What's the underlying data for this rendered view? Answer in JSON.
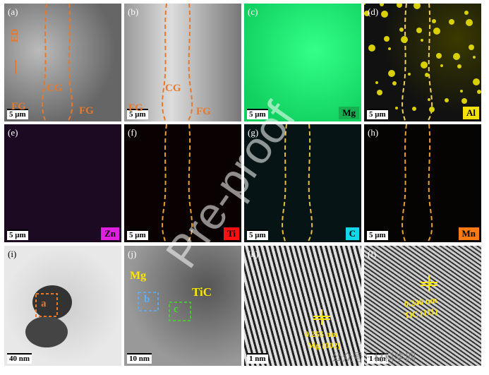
{
  "panels": [
    {
      "label": "(a)",
      "scale": "5 μm",
      "notes": [
        "ED",
        "FG",
        "CG",
        "FG"
      ]
    },
    {
      "label": "(b)",
      "scale": "5 μm",
      "notes": [
        "FG",
        "CG",
        "FG"
      ]
    },
    {
      "label": "(c)",
      "scale": "5 μm",
      "tag": "Mg"
    },
    {
      "label": "(d)",
      "scale": "5 μm",
      "tag": "Al"
    },
    {
      "label": "(e)",
      "scale": "5 μm",
      "tag": "Zn"
    },
    {
      "label": "(f)",
      "scale": "5 μm",
      "tag": "Ti"
    },
    {
      "label": "(g)",
      "scale": "5 μm",
      "tag": "C"
    },
    {
      "label": "(h)",
      "scale": "5 μm",
      "tag": "Mn"
    },
    {
      "label": "(i)",
      "scale": "40 nm",
      "notes": [
        "a"
      ]
    },
    {
      "label": "(j)",
      "scale": "10 nm",
      "notes": [
        "Mg",
        "TiC",
        "b",
        "c"
      ]
    },
    {
      "label": "(k)",
      "scale": "1 nm",
      "notes": [
        "0.255 nm",
        "Mg (002)"
      ]
    },
    {
      "label": "(l)",
      "scale": "1 nm",
      "notes": [
        "0.246 nm",
        "TiC (111)"
      ]
    }
  ],
  "watermark": {
    "main": "Pre-proof",
    "corner": "公众号 · 材料学网"
  }
}
